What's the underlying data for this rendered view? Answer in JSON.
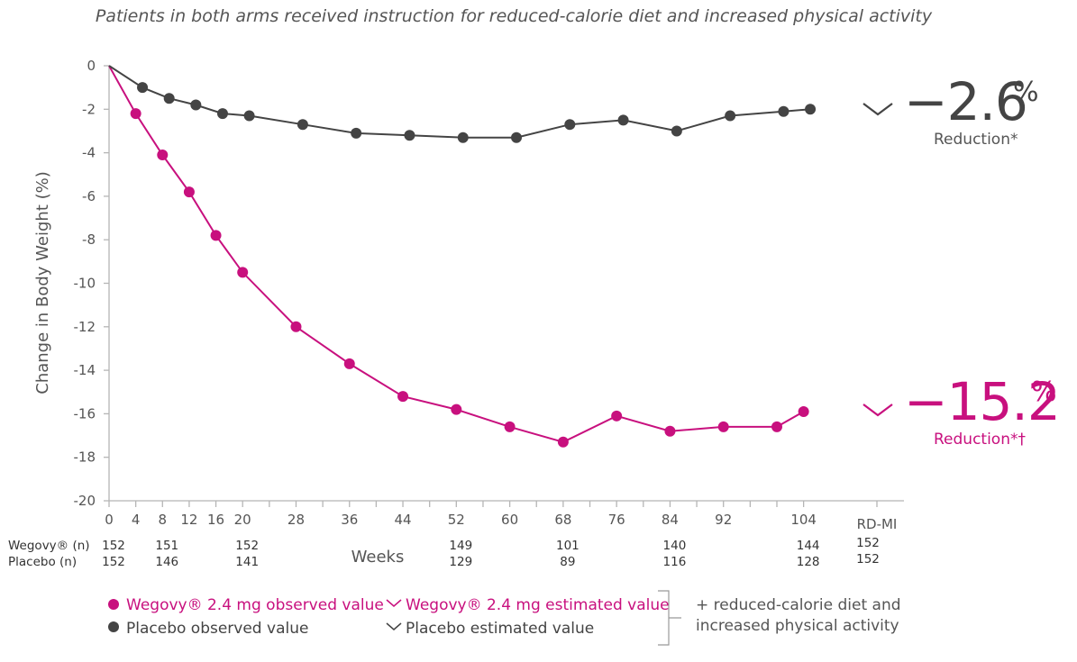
{
  "subtitle": "Patients in both arms received instruction for reduced-calorie diet and increased physical activity",
  "colors": {
    "wegovy": "#c8107e",
    "placebo": "#444444",
    "axis": "#b5b5b5"
  },
  "chart_data": {
    "type": "line",
    "ylabel": "Change in Body Weight (%)",
    "xlabel": "Weeks",
    "ylim": [
      -20,
      0
    ],
    "yticks": [
      "0",
      "-2",
      "-4",
      "-6",
      "-8",
      "-10",
      "-12",
      "-14",
      "-16",
      "-18",
      "-20"
    ],
    "xticks": [
      "0",
      "4",
      "8",
      "12",
      "16",
      "20",
      "28",
      "36",
      "44",
      "52",
      "60",
      "68",
      "76",
      "84",
      "92",
      "104"
    ],
    "xtick_extra": "RD-MI",
    "series": [
      {
        "name": "Wegovy® 2.4 mg observed value",
        "x": [
          0,
          4,
          8,
          12,
          16,
          20,
          28,
          36,
          44,
          52,
          60,
          68,
          76,
          84,
          92,
          100,
          104
        ],
        "y": [
          0,
          -2.2,
          -4.1,
          -5.8,
          -7.8,
          -9.5,
          -12.0,
          -13.7,
          -15.2,
          -15.8,
          -16.6,
          -17.3,
          -16.1,
          -16.8,
          -16.6,
          -16.6,
          -15.9
        ]
      },
      {
        "name": "Placebo observed value",
        "x": [
          0,
          5,
          9,
          13,
          17,
          21,
          29,
          37,
          45,
          53,
          61,
          69,
          77,
          85,
          93,
          101,
          105
        ],
        "y": [
          0,
          -1.0,
          -1.5,
          -1.8,
          -2.2,
          -2.3,
          -2.7,
          -3.1,
          -3.2,
          -3.3,
          -3.3,
          -2.7,
          -2.5,
          -3.0,
          -2.3,
          -2.1,
          -2.0
        ]
      }
    ],
    "estimated": [
      {
        "name": "Placebo",
        "value": "−2.6",
        "unit": "%",
        "label": "Reduction*"
      },
      {
        "name": "Wegovy",
        "value": "−15.2",
        "unit": "%",
        "label": "Reduction*†"
      }
    ]
  },
  "n_table": {
    "wegovy_label": "Wegovy® (n)",
    "placebo_label": "Placebo (n)",
    "columns": [
      "0",
      "8",
      "20",
      "52",
      "68",
      "84",
      "104",
      "RD-MI"
    ],
    "wegovy": [
      "152",
      "151",
      "152",
      "149",
      "101",
      "140",
      "144",
      "152"
    ],
    "placebo": [
      "152",
      "146",
      "141",
      "129",
      "89",
      "116",
      "128",
      "152"
    ]
  },
  "legend": {
    "wegovy_observed": "Wegovy® 2.4 mg observed value",
    "wegovy_estimated": "Wegovy® 2.4 mg estimated value",
    "placebo_observed": "Placebo observed value",
    "placebo_estimated": "Placebo estimated value",
    "note_line1": "+ reduced-calorie diet and",
    "note_line2": "increased physical activity"
  }
}
